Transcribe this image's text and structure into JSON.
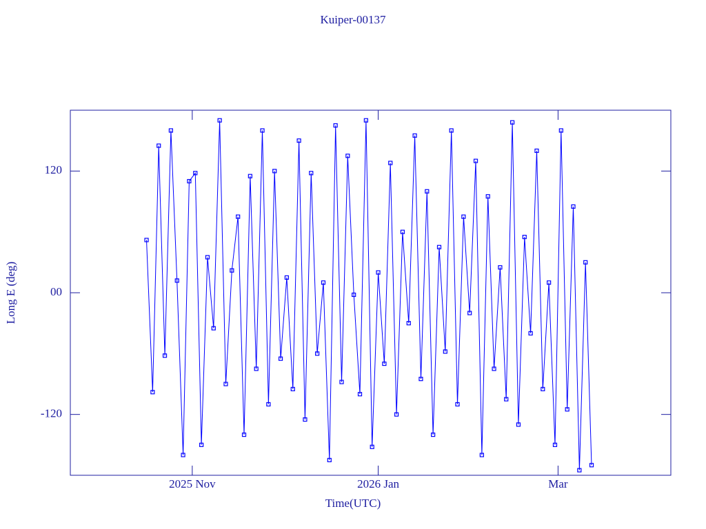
{
  "chart_data": {
    "type": "line",
    "title": "Kuiper-00137",
    "x_label": "Time(UTC)",
    "y_label": "Long E (deg)",
    "x": [
      "2025-10-17",
      "2025-10-19",
      "2025-10-21",
      "2025-10-23",
      "2025-10-25",
      "2025-10-27",
      "2025-10-29",
      "2025-10-31",
      "2025-11-02",
      "2025-11-04",
      "2025-11-06",
      "2025-11-08",
      "2025-11-10",
      "2025-11-12",
      "2025-11-14",
      "2025-11-16",
      "2025-11-18",
      "2025-11-20",
      "2025-11-22",
      "2025-11-24",
      "2025-11-26",
      "2025-11-28",
      "2025-11-30",
      "2025-12-02",
      "2025-12-04",
      "2025-12-06",
      "2025-12-08",
      "2025-12-10",
      "2025-12-12",
      "2025-12-14",
      "2025-12-16",
      "2025-12-18",
      "2025-12-20",
      "2025-12-22",
      "2025-12-24",
      "2025-12-26",
      "2025-12-28",
      "2025-12-30",
      "2026-01-01",
      "2026-01-03",
      "2026-01-05",
      "2026-01-07",
      "2026-01-09",
      "2026-01-11",
      "2026-01-13",
      "2026-01-15",
      "2026-01-17",
      "2026-01-19",
      "2026-01-21",
      "2026-01-23",
      "2026-01-25",
      "2026-01-27",
      "2026-01-29",
      "2026-01-31",
      "2026-02-02",
      "2026-02-04",
      "2026-02-06",
      "2026-02-08",
      "2026-02-10",
      "2026-02-12",
      "2026-02-14",
      "2026-02-16",
      "2026-02-18",
      "2026-02-20",
      "2026-02-22",
      "2026-02-24",
      "2026-02-26",
      "2026-02-28",
      "2026-03-02",
      "2026-03-04",
      "2026-03-06",
      "2026-03-08",
      "2026-03-10",
      "2026-03-12"
    ],
    "series": [
      {
        "name": "Kuiper-00137",
        "color": "#0000ff",
        "values": [
          52,
          -98,
          145,
          -62,
          160,
          12,
          -160,
          110,
          118,
          -150,
          35,
          -35,
          170,
          -90,
          22,
          75,
          -140,
          115,
          -75,
          160,
          -110,
          120,
          -65,
          15,
          -95,
          150,
          -125,
          118,
          -60,
          10,
          -165,
          165,
          -88,
          135,
          -2,
          -100,
          170,
          -152,
          20,
          -70,
          128,
          -120,
          60,
          -30,
          155,
          -85,
          100,
          -140,
          45,
          -58,
          160,
          -110,
          75,
          -20,
          130,
          -160,
          95,
          -75,
          25,
          -105,
          168,
          -130,
          55,
          -40,
          140,
          -95,
          10,
          -150,
          160,
          -115,
          85,
          -175,
          30,
          -170
        ]
      }
    ],
    "xlim": [
      "2025-09-22",
      "2026-04-07"
    ],
    "xticks": [
      {
        "value": "2025-11-01",
        "label": "2025 Nov"
      },
      {
        "value": "2026-01-01",
        "label": "2026 Jan"
      },
      {
        "value": "2026-03-01",
        "label": "Mar"
      }
    ],
    "ylim": [
      -180,
      180
    ],
    "yticks": [
      -120,
      {
        "value": 0,
        "label": "00"
      },
      120
    ],
    "axis_color": "#1c1ca0"
  }
}
